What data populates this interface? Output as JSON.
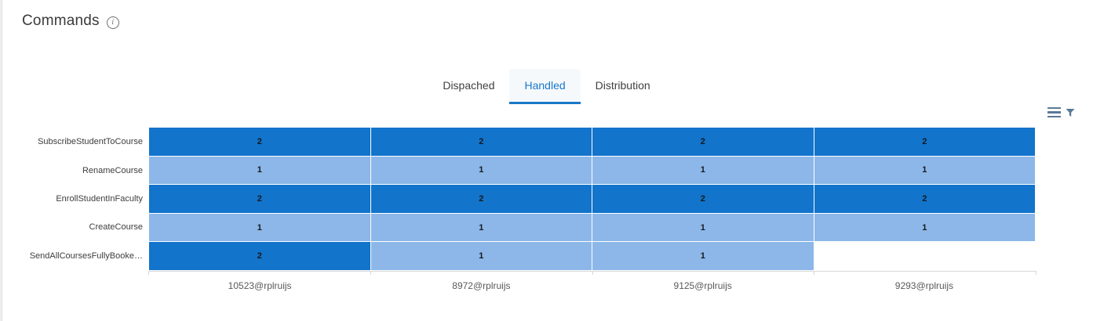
{
  "header": {
    "title": "Commands",
    "info_icon": "info-icon"
  },
  "tabs": [
    {
      "label": "Dispached",
      "active": false
    },
    {
      "label": "Handled",
      "active": true
    },
    {
      "label": "Distribution",
      "active": false
    }
  ],
  "chart_toolbar": {
    "menu_icon": "hamburger-menu-icon",
    "filter_icon": "filter-funnel-icon",
    "icon_color": "#5b7995"
  },
  "colors": {
    "accent": "#1878c9",
    "active_tab_bg": "#f6f9fc",
    "cell_high": "#1274cb",
    "cell_low": "#8cb7e8",
    "cell_empty": "#ffffff"
  },
  "chart_data": {
    "type": "heatmap",
    "title": "Commands",
    "rows": [
      "SubscribeStudentToCourse",
      "RenameCourse",
      "EnrollStudentInFaculty",
      "CreateCourse",
      "SendAllCoursesFullyBooke…"
    ],
    "columns": [
      "10523@rplruijs",
      "8972@rplruijs",
      "9125@rplruijs",
      "9293@rplruijs"
    ],
    "values": [
      [
        2,
        2,
        2,
        2
      ],
      [
        1,
        1,
        1,
        1
      ],
      [
        2,
        2,
        2,
        2
      ],
      [
        1,
        1,
        1,
        1
      ],
      [
        2,
        1,
        1,
        null
      ]
    ],
    "value_color_map": {
      "2": "#1274cb",
      "1": "#8cb7e8"
    },
    "legend": "none",
    "grid": "off"
  }
}
